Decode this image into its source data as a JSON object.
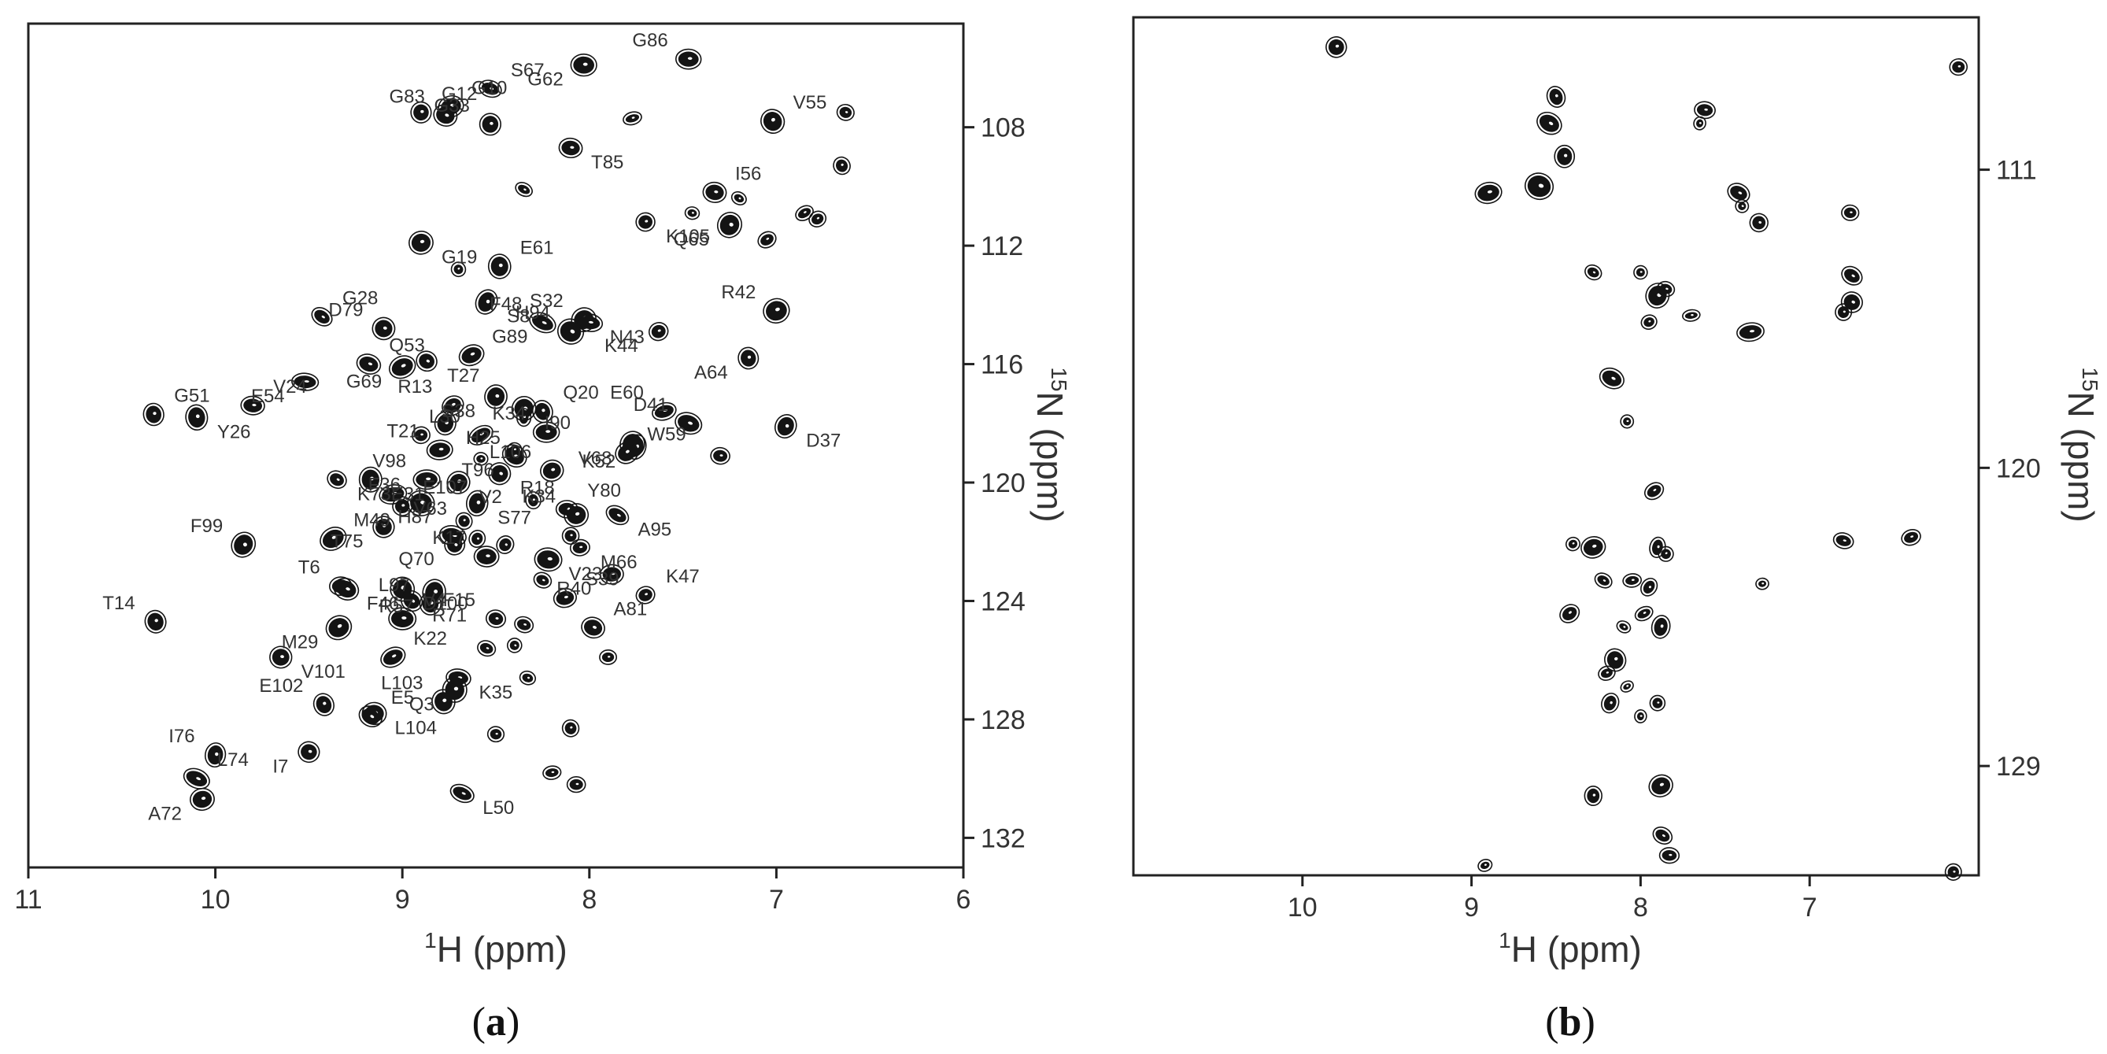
{
  "chart_data": [
    {
      "panel": "(a)",
      "panel_letter": "a",
      "type": "scatter",
      "title": "",
      "xlabel_sup": "1",
      "xlabel": "H (ppm)",
      "ylabel_sup": "15",
      "ylabel": "N (ppm)",
      "xlim": [
        11,
        6
      ],
      "ylim": [
        104.5,
        133
      ],
      "xticks": [
        11,
        10,
        9,
        8,
        7,
        6
      ],
      "yticks": [
        108,
        112,
        116,
        120,
        124,
        128,
        132
      ],
      "grid": false,
      "labeled_peaks": [
        {
          "label": "G12",
          "x": 8.9,
          "y": 107.5
        },
        {
          "label": "G10",
          "x": 8.74,
          "y": 107.3
        },
        {
          "label": "G83",
          "x": 8.77,
          "y": 107.6
        },
        {
          "label": "S67",
          "x": 8.53,
          "y": 106.7
        },
        {
          "label": "G33",
          "x": 8.53,
          "y": 107.9
        },
        {
          "label": "G62",
          "x": 8.03,
          "y": 105.9
        },
        {
          "label": "G86",
          "x": 7.47,
          "y": 105.7
        },
        {
          "label": "V55",
          "x": 7.02,
          "y": 107.8
        },
        {
          "label": "T85",
          "x": 8.1,
          "y": 108.7
        },
        {
          "label": "I56",
          "x": 7.33,
          "y": 110.2
        },
        {
          "label": "K105",
          "x": 7.7,
          "y": 111.2
        },
        {
          "label": "Q65",
          "x": 7.25,
          "y": 111.3
        },
        {
          "label": "G19",
          "x": 8.9,
          "y": 111.9
        },
        {
          "label": "E61",
          "x": 8.48,
          "y": 112.7
        },
        {
          "label": "R42",
          "x": 7.0,
          "y": 114.2
        },
        {
          "label": "G28",
          "x": 9.43,
          "y": 114.4
        },
        {
          "label": "D79",
          "x": 9.1,
          "y": 114.8
        },
        {
          "label": "S8",
          "x": 8.55,
          "y": 113.9
        },
        {
          "label": "F48",
          "x": 8.25,
          "y": 114.6
        },
        {
          "label": "S32",
          "x": 8.03,
          "y": 114.5
        },
        {
          "label": "N43",
          "x": 8.0,
          "y": 114.6
        },
        {
          "label": "H94",
          "x": 8.1,
          "y": 114.9
        },
        {
          "label": "K44",
          "x": 7.63,
          "y": 114.9
        },
        {
          "label": "Q53",
          "x": 9.18,
          "y": 116.0
        },
        {
          "label": "G69",
          "x": 9.0,
          "y": 116.1
        },
        {
          "label": "T27",
          "x": 8.87,
          "y": 115.9
        },
        {
          "label": "G89",
          "x": 8.63,
          "y": 115.7
        },
        {
          "label": "A64",
          "x": 7.15,
          "y": 115.8
        },
        {
          "label": "E54",
          "x": 9.52,
          "y": 116.6
        },
        {
          "label": "G51",
          "x": 10.33,
          "y": 117.7
        },
        {
          "label": "Y26",
          "x": 10.1,
          "y": 117.8
        },
        {
          "label": "V24",
          "x": 9.8,
          "y": 117.4
        },
        {
          "label": "R13",
          "x": 8.73,
          "y": 117.4
        },
        {
          "label": "S38",
          "x": 8.5,
          "y": 117.1
        },
        {
          "label": "I90",
          "x": 8.35,
          "y": 117.5
        },
        {
          "label": "Q20",
          "x": 8.25,
          "y": 117.6
        },
        {
          "label": "E60",
          "x": 7.6,
          "y": 117.6
        },
        {
          "label": "D41",
          "x": 7.47,
          "y": 118.0
        },
        {
          "label": "D37",
          "x": 6.95,
          "y": 118.1
        },
        {
          "label": "H25",
          "x": 8.77,
          "y": 118.0
        },
        {
          "label": "L30",
          "x": 8.58,
          "y": 118.4
        },
        {
          "label": "K34",
          "x": 8.23,
          "y": 118.3
        },
        {
          "label": "V68",
          "x": 7.77,
          "y": 118.7
        },
        {
          "label": "K52",
          "x": 7.75,
          "y": 118.8
        },
        {
          "label": "W59",
          "x": 7.8,
          "y": 119.0
        },
        {
          "label": "T21",
          "x": 8.8,
          "y": 118.9
        },
        {
          "label": "T96",
          "x": 8.4,
          "y": 119.1
        },
        {
          "label": "K73",
          "x": 9.35,
          "y": 119.9
        },
        {
          "label": "E31",
          "x": 9.17,
          "y": 119.9
        },
        {
          "label": "V63",
          "x": 9.05,
          "y": 120.4
        },
        {
          "label": "V98",
          "x": 8.87,
          "y": 119.9
        },
        {
          "label": "V2",
          "x": 8.7,
          "y": 120.0
        },
        {
          "label": "R18",
          "x": 8.48,
          "y": 119.7
        },
        {
          "label": "L106",
          "x": 8.2,
          "y": 119.6
        },
        {
          "label": "E107",
          "x": 9.0,
          "y": 120.8
        },
        {
          "label": "F36",
          "x": 8.9,
          "y": 120.7
        },
        {
          "label": "S77",
          "x": 8.6,
          "y": 120.7
        },
        {
          "label": "Y80",
          "x": 8.12,
          "y": 120.9
        },
        {
          "label": "K34",
          "x": 8.07,
          "y": 121.1
        },
        {
          "label": "A95",
          "x": 7.85,
          "y": 121.1
        },
        {
          "label": "F99",
          "x": 9.85,
          "y": 122.1
        },
        {
          "label": "T75",
          "x": 9.1,
          "y": 121.5
        },
        {
          "label": "H87",
          "x": 8.73,
          "y": 121.8
        },
        {
          "label": "M49",
          "x": 9.37,
          "y": 121.9
        },
        {
          "label": "Q70",
          "x": 8.72,
          "y": 122.1
        },
        {
          "label": "K17",
          "x": 8.55,
          "y": 122.5
        },
        {
          "label": "M66",
          "x": 8.05,
          "y": 122.2
        },
        {
          "label": "V23",
          "x": 8.22,
          "y": 122.6
        },
        {
          "label": "R40",
          "x": 7.88,
          "y": 123.1
        },
        {
          "label": "T6",
          "x": 9.33,
          "y": 123.5
        },
        {
          "label": "D100",
          "x": 9.0,
          "y": 123.6
        },
        {
          "label": "R57",
          "x": 8.83,
          "y": 123.7
        },
        {
          "label": "S39",
          "x": 8.13,
          "y": 123.9
        },
        {
          "label": "K47",
          "x": 7.7,
          "y": 123.8
        },
        {
          "label": "F46",
          "x": 9.3,
          "y": 123.6
        },
        {
          "label": "R71",
          "x": 8.95,
          "y": 124.0
        },
        {
          "label": "T14",
          "x": 10.32,
          "y": 124.7
        },
        {
          "label": "M29",
          "x": 9.34,
          "y": 124.9
        },
        {
          "label": "V4",
          "x": 9.0,
          "y": 124.6
        },
        {
          "label": "L97",
          "x": 8.85,
          "y": 124.1
        },
        {
          "label": "F15",
          "x": 8.5,
          "y": 124.6
        },
        {
          "label": "A81",
          "x": 7.98,
          "y": 124.9
        },
        {
          "label": "V101",
          "x": 9.65,
          "y": 125.9
        },
        {
          "label": "K35",
          "x": 8.7,
          "y": 126.6
        },
        {
          "label": "K22",
          "x": 9.05,
          "y": 125.9
        },
        {
          "label": "Q3",
          "x": 8.72,
          "y": 127.0
        },
        {
          "label": "L104",
          "x": 9.15,
          "y": 127.8
        },
        {
          "label": "E102",
          "x": 9.42,
          "y": 127.5
        },
        {
          "label": "L103",
          "x": 8.78,
          "y": 127.4
        },
        {
          "label": "E5",
          "x": 9.17,
          "y": 127.9
        },
        {
          "label": "I76",
          "x": 10.0,
          "y": 129.2
        },
        {
          "label": "I7",
          "x": 9.5,
          "y": 129.1
        },
        {
          "label": "L74",
          "x": 10.1,
          "y": 130.0
        },
        {
          "label": "A72",
          "x": 10.07,
          "y": 130.7
        },
        {
          "label": "L50",
          "x": 8.68,
          "y": 130.5
        }
      ],
      "unlabeled_peaks": [
        {
          "x": 6.63,
          "y": 107.5
        },
        {
          "x": 6.65,
          "y": 109.3
        },
        {
          "x": 7.77,
          "y": 107.7
        },
        {
          "x": 8.35,
          "y": 110.1
        },
        {
          "x": 7.45,
          "y": 110.9
        },
        {
          "x": 7.2,
          "y": 110.4
        },
        {
          "x": 6.85,
          "y": 110.9
        },
        {
          "x": 6.78,
          "y": 111.1
        },
        {
          "x": 7.05,
          "y": 111.8
        },
        {
          "x": 8.7,
          "y": 112.8
        },
        {
          "x": 8.4,
          "y": 118.9
        },
        {
          "x": 8.35,
          "y": 117.8
        },
        {
          "x": 8.58,
          "y": 119.2
        },
        {
          "x": 8.3,
          "y": 120.6
        },
        {
          "x": 8.1,
          "y": 121.8
        },
        {
          "x": 8.45,
          "y": 122.1
        },
        {
          "x": 8.67,
          "y": 121.3
        },
        {
          "x": 8.6,
          "y": 121.9
        },
        {
          "x": 8.35,
          "y": 124.8
        },
        {
          "x": 8.4,
          "y": 125.5
        },
        {
          "x": 8.55,
          "y": 125.6
        },
        {
          "x": 8.25,
          "y": 123.3
        },
        {
          "x": 7.3,
          "y": 119.1
        },
        {
          "x": 8.2,
          "y": 129.8
        },
        {
          "x": 8.07,
          "y": 130.2
        },
        {
          "x": 7.9,
          "y": 125.9
        },
        {
          "x": 8.33,
          "y": 126.6
        },
        {
          "x": 8.1,
          "y": 128.3
        },
        {
          "x": 8.5,
          "y": 128.5
        },
        {
          "x": 8.9,
          "y": 118.4
        }
      ]
    },
    {
      "panel": "(b)",
      "panel_letter": "b",
      "type": "scatter",
      "title": "",
      "xlabel_sup": "1",
      "xlabel": "H (ppm)",
      "ylabel_sup": "15",
      "ylabel": "N (ppm)",
      "xlim": [
        11,
        6
      ],
      "ylim": [
        106.4,
        132.3
      ],
      "xticks": [
        10,
        9,
        8,
        7
      ],
      "yticks": [
        111,
        120,
        129
      ],
      "grid": false,
      "peaks": [
        {
          "x": 9.8,
          "y": 107.3
        },
        {
          "x": 8.54,
          "y": 109.6
        },
        {
          "x": 8.5,
          "y": 108.8
        },
        {
          "x": 7.65,
          "y": 109.6
        },
        {
          "x": 7.62,
          "y": 109.2
        },
        {
          "x": 8.45,
          "y": 110.6
        },
        {
          "x": 7.42,
          "y": 111.7
        },
        {
          "x": 7.4,
          "y": 112.1
        },
        {
          "x": 6.76,
          "y": 112.3
        },
        {
          "x": 8.6,
          "y": 111.5
        },
        {
          "x": 8.9,
          "y": 111.7
        },
        {
          "x": 7.3,
          "y": 112.6
        },
        {
          "x": 6.12,
          "y": 107.9
        },
        {
          "x": 8.28,
          "y": 114.1
        },
        {
          "x": 8.0,
          "y": 114.1
        },
        {
          "x": 7.9,
          "y": 114.8
        },
        {
          "x": 7.85,
          "y": 114.6
        },
        {
          "x": 7.95,
          "y": 115.6
        },
        {
          "x": 6.75,
          "y": 114.2
        },
        {
          "x": 6.75,
          "y": 115.0
        },
        {
          "x": 6.8,
          "y": 115.3
        },
        {
          "x": 7.7,
          "y": 115.4
        },
        {
          "x": 7.35,
          "y": 115.9
        },
        {
          "x": 8.17,
          "y": 117.3
        },
        {
          "x": 8.08,
          "y": 118.6
        },
        {
          "x": 7.92,
          "y": 120.7
        },
        {
          "x": 8.4,
          "y": 122.3
        },
        {
          "x": 8.28,
          "y": 122.4
        },
        {
          "x": 7.9,
          "y": 122.4
        },
        {
          "x": 7.85,
          "y": 122.6
        },
        {
          "x": 8.22,
          "y": 123.4
        },
        {
          "x": 8.05,
          "y": 123.4
        },
        {
          "x": 7.95,
          "y": 123.6
        },
        {
          "x": 7.28,
          "y": 123.5
        },
        {
          "x": 8.42,
          "y": 124.4
        },
        {
          "x": 7.98,
          "y": 124.4
        },
        {
          "x": 8.1,
          "y": 124.8
        },
        {
          "x": 7.88,
          "y": 124.8
        },
        {
          "x": 8.15,
          "y": 125.8
        },
        {
          "x": 8.2,
          "y": 126.2
        },
        {
          "x": 8.08,
          "y": 126.6
        },
        {
          "x": 8.18,
          "y": 127.1
        },
        {
          "x": 7.9,
          "y": 127.1
        },
        {
          "x": 8.28,
          "y": 129.9
        },
        {
          "x": 7.88,
          "y": 129.6
        },
        {
          "x": 7.87,
          "y": 131.1
        },
        {
          "x": 7.83,
          "y": 131.7
        },
        {
          "x": 8.0,
          "y": 127.5
        },
        {
          "x": 6.8,
          "y": 122.2
        },
        {
          "x": 6.4,
          "y": 122.1
        },
        {
          "x": 8.92,
          "y": 132.0
        },
        {
          "x": 6.15,
          "y": 132.2
        }
      ]
    }
  ]
}
